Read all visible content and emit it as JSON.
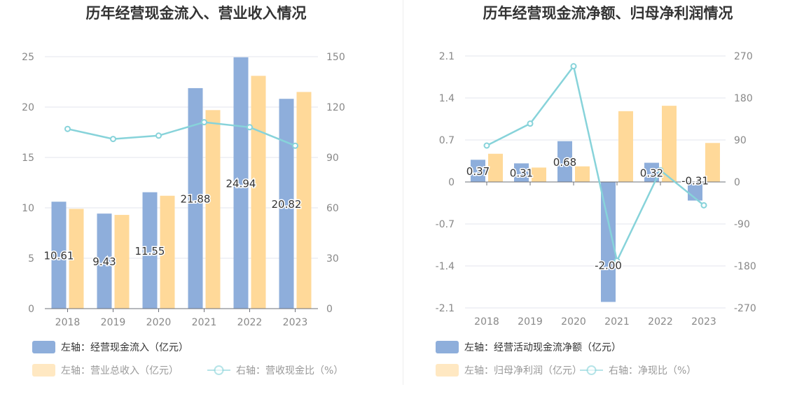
{
  "colors": {
    "bar_blue": "#8eaedb",
    "bar_orange": "#ffd999",
    "line_teal": "#87d3da",
    "axis_text": "#888888",
    "grid": "#e3e6ee",
    "title": "#333333"
  },
  "chart_data": [
    {
      "type": "bar",
      "title": "历年经营现金流入、营业收入情况",
      "categories": [
        "2018",
        "2019",
        "2020",
        "2021",
        "2022",
        "2023"
      ],
      "y_left": {
        "min": 0,
        "max": 25,
        "ticks": [
          "0",
          "5",
          "10",
          "15",
          "20",
          "25"
        ]
      },
      "y_right": {
        "min": 0,
        "max": 150,
        "ticks": [
          "0",
          "30",
          "60",
          "90",
          "120",
          "150"
        ]
      },
      "series": [
        {
          "name": "左轴：经营现金流入（亿元）",
          "kind": "bar",
          "axis": "left",
          "values": [
            10.61,
            9.43,
            11.55,
            21.88,
            24.94,
            20.82
          ],
          "labels": [
            "10.61",
            "9.43",
            "11.55",
            "21.88",
            "24.94",
            "20.82"
          ]
        },
        {
          "name": "左轴：营业总收入（亿元）",
          "kind": "bar",
          "axis": "left",
          "values": [
            9.9,
            9.3,
            11.2,
            19.7,
            23.1,
            21.5
          ]
        },
        {
          "name": "右轴：营收现金比（%）",
          "kind": "line",
          "axis": "right",
          "values": [
            107,
            101,
            103,
            111,
            108,
            97
          ]
        }
      ],
      "grid": true,
      "legend_position": "bottom-left"
    },
    {
      "type": "bar",
      "title": "历年经营现金流净额、归母净利润情况",
      "categories": [
        "2018",
        "2019",
        "2020",
        "2021",
        "2022",
        "2023"
      ],
      "y_left": {
        "min": -2.1,
        "max": 2.1,
        "ticks": [
          "-2.1",
          "-1.4",
          "-0.7",
          "0",
          "0.7",
          "1.4",
          "2.1"
        ]
      },
      "y_right": {
        "min": -270,
        "max": 270,
        "ticks": [
          "-270",
          "-180",
          "-90",
          "0",
          "90",
          "180",
          "270"
        ]
      },
      "series": [
        {
          "name": "左轴：经营活动现金流净额（亿元）",
          "kind": "bar",
          "axis": "left",
          "values": [
            0.37,
            0.31,
            0.68,
            -2.0,
            0.32,
            -0.31
          ],
          "labels": [
            "0.37",
            "0.31",
            "0.68",
            "-2.00",
            "0.32",
            "-0.31"
          ]
        },
        {
          "name": "左轴：归母净利润（亿元）",
          "kind": "bar",
          "axis": "left",
          "values": [
            0.47,
            0.24,
            0.26,
            1.18,
            1.27,
            0.65
          ]
        },
        {
          "name": "右轴：净现比（%）",
          "kind": "line",
          "axis": "right",
          "values": [
            78,
            125,
            248,
            -169,
            25,
            -50
          ]
        }
      ],
      "grid": true,
      "legend_position": "bottom-left"
    }
  ]
}
